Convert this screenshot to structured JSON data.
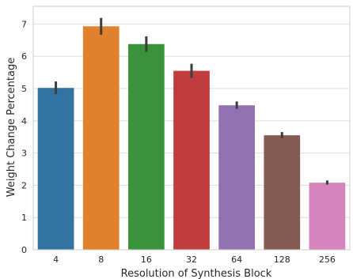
{
  "chart_data": {
    "type": "bar",
    "title": "",
    "xlabel": "Resolution of Synthesis Block",
    "ylabel": "Weight Change Percentage",
    "categories": [
      "4",
      "8",
      "16",
      "32",
      "64",
      "128",
      "256"
    ],
    "values": [
      5.02,
      6.93,
      6.38,
      5.55,
      4.48,
      3.55,
      2.08
    ],
    "error_bars": [
      [
        4.83,
        5.22
      ],
      [
        6.67,
        7.19
      ],
      [
        6.14,
        6.62
      ],
      [
        5.33,
        5.77
      ],
      [
        4.37,
        4.6
      ],
      [
        3.46,
        3.65
      ],
      [
        2.02,
        2.15
      ]
    ],
    "colors": [
      "#3274a1",
      "#e1812c",
      "#3a923a",
      "#c03d3e",
      "#9372b2",
      "#845b53",
      "#d684bd"
    ],
    "ylim": [
      0,
      7.55
    ],
    "yticks": [
      0,
      1,
      2,
      3,
      4,
      5,
      6,
      7
    ],
    "grid": "horizontal",
    "legend": "none"
  }
}
